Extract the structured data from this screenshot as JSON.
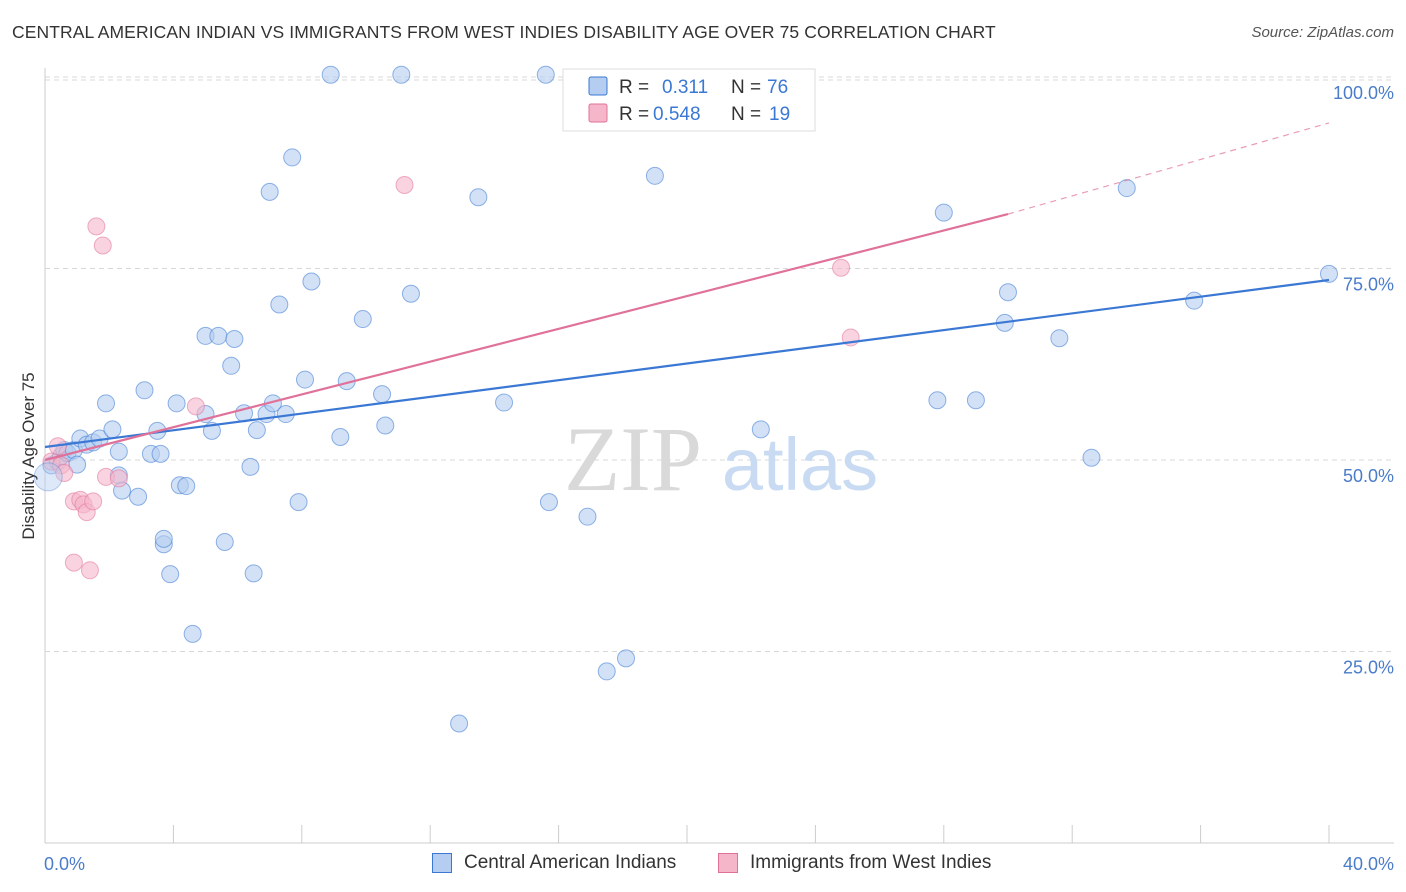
{
  "title": "CENTRAL AMERICAN INDIAN VS IMMIGRANTS FROM WEST INDIES DISABILITY AGE OVER 75 CORRELATION CHART",
  "source": "Source: ZipAtlas.com",
  "watermark": {
    "zip": "ZIP",
    "atlas": "atlas"
  },
  "colors": {
    "blue": "#3a78d4",
    "blue_fill": "#b4cdf0",
    "pink": "#e0729a",
    "pink_fill": "#f5b6ca",
    "grid": "#d8d8d8",
    "axis_text": "#4a7cc9"
  },
  "legend": {
    "rows": [
      {
        "r_label": "R =",
        "r_value": "0.311",
        "n_label": "N =",
        "n_value": "76"
      },
      {
        "r_label": "R =",
        "r_value": "0.548",
        "n_label": "N =",
        "n_value": "19"
      }
    ]
  },
  "bottom_legend": [
    "Central American Indians",
    "Immigrants from West Indies"
  ],
  "chart_data": {
    "type": "scatter",
    "title": "CENTRAL AMERICAN INDIAN VS IMMIGRANTS FROM WEST INDIES DISABILITY AGE OVER 75 CORRELATION CHART",
    "xlabel": "",
    "ylabel": "Disability Age Over 75",
    "xlim": [
      0,
      40
    ],
    "ylim": [
      0,
      102
    ],
    "x_tick_labels": [
      "0.0%",
      "40.0%"
    ],
    "y_ticks": [
      25,
      50,
      75,
      100
    ],
    "y_tick_labels": [
      "25.0%",
      "50.0%",
      "75.0%",
      "100.0%"
    ],
    "legend_position": "top-center",
    "series": [
      {
        "name": "Central American Indians",
        "color": "blue",
        "R": 0.311,
        "N": 76,
        "trend": {
          "x": [
            0,
            40
          ],
          "y": [
            51.7,
            73.5
          ],
          "dashed_to": null
        },
        "points": [
          [
            0.2,
            49.3
          ],
          [
            0.4,
            49.8
          ],
          [
            0.5,
            50.5
          ],
          [
            0.6,
            51.3
          ],
          [
            0.7,
            50.9
          ],
          [
            0.9,
            51.3
          ],
          [
            1.0,
            49.4
          ],
          [
            1.1,
            52.8
          ],
          [
            1.3,
            52.0
          ],
          [
            1.5,
            52.3
          ],
          [
            1.7,
            52.8
          ],
          [
            1.9,
            57.4
          ],
          [
            2.1,
            54.0
          ],
          [
            2.3,
            51.1
          ],
          [
            2.3,
            48.0
          ],
          [
            2.4,
            46.0
          ],
          [
            2.9,
            45.2
          ],
          [
            3.1,
            59.1
          ],
          [
            3.5,
            53.8
          ],
          [
            3.3,
            50.8
          ],
          [
            3.6,
            50.8
          ],
          [
            3.7,
            39.0
          ],
          [
            3.7,
            39.7
          ],
          [
            3.9,
            35.1
          ],
          [
            4.1,
            57.4
          ],
          [
            4.2,
            46.7
          ],
          [
            4.4,
            46.6
          ],
          [
            4.6,
            27.3
          ],
          [
            5.0,
            56.0
          ],
          [
            5.0,
            66.2
          ],
          [
            5.2,
            53.8
          ],
          [
            5.4,
            66.2
          ],
          [
            5.6,
            39.3
          ],
          [
            5.8,
            62.3
          ],
          [
            5.9,
            65.8
          ],
          [
            6.2,
            56.1
          ],
          [
            6.4,
            49.1
          ],
          [
            6.5,
            35.2
          ],
          [
            6.6,
            53.9
          ],
          [
            6.9,
            56.0
          ],
          [
            7.0,
            85.0
          ],
          [
            7.1,
            57.4
          ],
          [
            7.3,
            70.3
          ],
          [
            7.5,
            56.0
          ],
          [
            7.7,
            89.5
          ],
          [
            7.9,
            44.5
          ],
          [
            8.1,
            60.5
          ],
          [
            8.3,
            73.3
          ],
          [
            8.9,
            100.3
          ],
          [
            9.2,
            53.0
          ],
          [
            9.4,
            60.3
          ],
          [
            9.9,
            68.4
          ],
          [
            10.5,
            58.6
          ],
          [
            10.6,
            54.5
          ],
          [
            11.1,
            100.3
          ],
          [
            11.4,
            71.7
          ],
          [
            12.9,
            15.6
          ],
          [
            13.5,
            84.3
          ],
          [
            14.3,
            57.5
          ],
          [
            15.6,
            100.3
          ],
          [
            15.7,
            44.5
          ],
          [
            16.9,
            42.6
          ],
          [
            17.5,
            22.4
          ],
          [
            18.1,
            24.1
          ],
          [
            19.0,
            87.1
          ],
          [
            22.3,
            54.0
          ],
          [
            27.8,
            57.8
          ],
          [
            28.0,
            82.3
          ],
          [
            29.0,
            57.8
          ],
          [
            29.9,
            67.9
          ],
          [
            30.0,
            71.9
          ],
          [
            31.6,
            65.9
          ],
          [
            32.6,
            50.3
          ],
          [
            33.7,
            85.5
          ],
          [
            35.8,
            70.8
          ],
          [
            40.0,
            74.3
          ]
        ]
      },
      {
        "name": "Immigrants from West Indies",
        "color": "pink",
        "R": 0.548,
        "N": 19,
        "trend": {
          "x": [
            0,
            30.0
          ],
          "y": [
            50.0,
            82.1
          ],
          "dashed_to": [
            40,
            94.0
          ]
        },
        "points": [
          [
            0.2,
            49.8
          ],
          [
            0.4,
            51.8
          ],
          [
            0.5,
            49.3
          ],
          [
            0.6,
            48.3
          ],
          [
            0.9,
            44.6
          ],
          [
            0.9,
            36.6
          ],
          [
            1.1,
            44.8
          ],
          [
            1.2,
            44.2
          ],
          [
            1.3,
            43.2
          ],
          [
            1.4,
            35.6
          ],
          [
            1.5,
            44.6
          ],
          [
            1.6,
            80.5
          ],
          [
            1.8,
            78.0
          ],
          [
            1.9,
            47.8
          ],
          [
            2.3,
            47.6
          ],
          [
            4.7,
            57.0
          ],
          [
            11.2,
            85.9
          ],
          [
            24.8,
            75.1
          ],
          [
            25.1,
            66.0
          ]
        ]
      }
    ]
  }
}
